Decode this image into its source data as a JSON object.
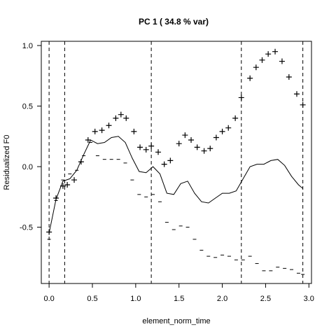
{
  "chart_data": {
    "type": "line",
    "title": "PC 1  ( 34.8 % var)",
    "xlabel": "element_norm_time",
    "ylabel": "Residualized F0",
    "xlim": [
      -0.09,
      3.03
    ],
    "ylim": [
      -0.965,
      1.035
    ],
    "x_ticks": [
      0.0,
      0.5,
      1.0,
      1.5,
      2.0,
      2.5,
      3.0
    ],
    "x_tick_labels": [
      "0.0",
      "0.5",
      "1.0",
      "1.5",
      "2.0",
      "2.5",
      "3.0"
    ],
    "y_ticks": [
      -0.5,
      0.0,
      0.5,
      1.0
    ],
    "y_tick_labels": [
      "-0.5",
      "0.0",
      "0.5",
      "1.0"
    ],
    "vlines": [
      0.0,
      0.18,
      1.18,
      2.22,
      2.93
    ],
    "grid": false,
    "legend": "none",
    "series": [
      {
        "style": "solid-line",
        "x": [
          0.0,
          0.08,
          0.16,
          0.24,
          0.32,
          0.4,
          0.48,
          0.56,
          0.64,
          0.72,
          0.8,
          0.88,
          0.96,
          1.04,
          1.12,
          1.2,
          1.28,
          1.36,
          1.44,
          1.52,
          1.6,
          1.68,
          1.76,
          1.84,
          1.92,
          2.0,
          2.08,
          2.16,
          2.24,
          2.32,
          2.4,
          2.48,
          2.56,
          2.64,
          2.72,
          2.8,
          2.88,
          2.93
        ],
        "y": [
          -0.55,
          -0.27,
          -0.12,
          -0.1,
          -0.03,
          0.1,
          0.22,
          0.19,
          0.2,
          0.24,
          0.25,
          0.2,
          0.07,
          -0.04,
          -0.05,
          0.0,
          -0.06,
          -0.22,
          -0.23,
          -0.14,
          -0.12,
          -0.22,
          -0.29,
          -0.3,
          -0.26,
          -0.22,
          -0.22,
          -0.2,
          -0.1,
          0.0,
          0.02,
          0.02,
          0.05,
          0.06,
          0.01,
          -0.08,
          -0.15,
          -0.18
        ]
      },
      {
        "style": "plus-markers",
        "x": [
          0.0,
          0.08,
          0.16,
          0.21,
          0.29,
          0.37,
          0.45,
          0.53,
          0.61,
          0.69,
          0.77,
          0.83,
          0.89,
          0.98,
          1.05,
          1.12,
          1.18,
          1.26,
          1.33,
          1.4,
          1.5,
          1.57,
          1.64,
          1.71,
          1.79,
          1.86,
          1.93,
          2.0,
          2.07,
          2.15,
          2.22,
          2.32,
          2.39,
          2.46,
          2.53,
          2.61,
          2.69,
          2.77,
          2.86,
          2.93
        ],
        "y": [
          -0.54,
          -0.26,
          -0.16,
          -0.15,
          -0.11,
          0.04,
          0.22,
          0.29,
          0.3,
          0.34,
          0.4,
          0.43,
          0.4,
          0.29,
          0.16,
          0.14,
          0.17,
          0.12,
          0.02,
          0.05,
          0.19,
          0.26,
          0.22,
          0.16,
          0.13,
          0.15,
          0.24,
          0.29,
          0.32,
          0.4,
          0.57,
          0.73,
          0.82,
          0.88,
          0.93,
          0.95,
          0.87,
          0.74,
          0.6,
          0.51
        ]
      },
      {
        "style": "dash-markers",
        "x": [
          0.0,
          0.08,
          0.16,
          0.24,
          0.32,
          0.4,
          0.48,
          0.56,
          0.64,
          0.72,
          0.8,
          0.88,
          0.96,
          1.04,
          1.12,
          1.2,
          1.28,
          1.36,
          1.44,
          1.52,
          1.6,
          1.68,
          1.76,
          1.84,
          1.92,
          2.0,
          2.08,
          2.16,
          2.24,
          2.32,
          2.4,
          2.48,
          2.56,
          2.64,
          2.72,
          2.8,
          2.88,
          2.93
        ],
        "y": [
          -0.6,
          -0.28,
          -0.11,
          -0.06,
          -0.03,
          0.09,
          0.2,
          0.09,
          0.06,
          0.06,
          0.06,
          0.03,
          -0.11,
          -0.23,
          -0.25,
          -0.23,
          -0.29,
          -0.46,
          -0.52,
          -0.49,
          -0.5,
          -0.6,
          -0.69,
          -0.74,
          -0.75,
          -0.73,
          -0.74,
          -0.77,
          -0.77,
          -0.74,
          -0.8,
          -0.86,
          -0.86,
          -0.83,
          -0.84,
          -0.85,
          -0.88,
          -0.89
        ]
      }
    ]
  }
}
